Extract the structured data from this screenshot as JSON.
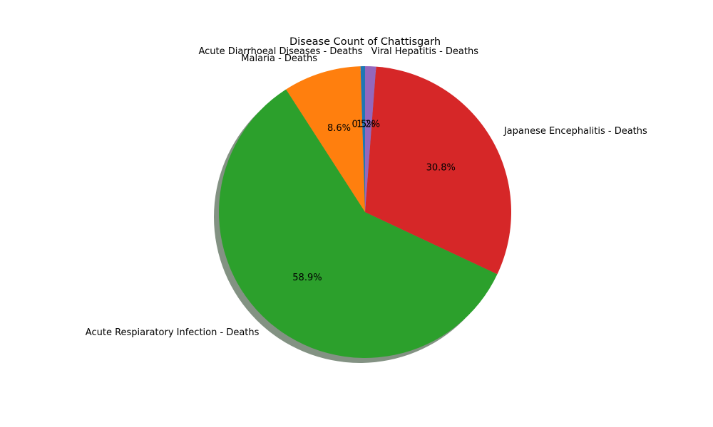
{
  "chart_data": {
    "type": "pie",
    "title": "Disease Count of Chattisgarh",
    "labels": [
      "Acute Diarrhoeal Diseases - Deaths",
      "Malaria - Deaths",
      "Acute Respiaratory Infection - Deaths",
      "Japanese Encephalitis - Deaths",
      "Viral Hepatitis - Deaths"
    ],
    "values": [
      0.5,
      8.6,
      58.9,
      30.8,
      1.2
    ],
    "percent_labels": [
      "0.5%",
      "8.6%",
      "58.9%",
      "30.8%",
      "1.2%"
    ],
    "colors": [
      "#1f77b4",
      "#ff7f0e",
      "#2ca02c",
      "#d62728",
      "#9467bd"
    ],
    "start_angle_deg": 90,
    "direction": "counterclockwise",
    "shadow": true
  }
}
